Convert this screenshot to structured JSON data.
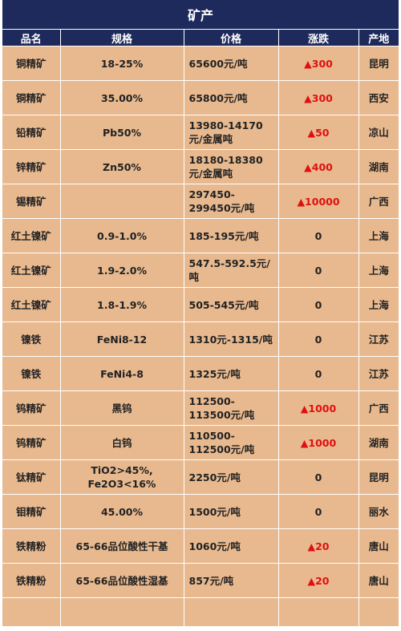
{
  "title": "矿产",
  "headers": [
    "品名",
    "规格",
    "价格",
    "涨跌",
    "产地"
  ],
  "rows": [
    {
      "name": "铜精矿",
      "spec": "18-25%",
      "price": "65600元/吨",
      "change": "▲300",
      "origin": "昆明"
    },
    {
      "name": "铜精矿",
      "spec": "35.00%",
      "price": "65800元/吨",
      "change": "▲300",
      "origin": "西安"
    },
    {
      "name": "铅精矿",
      "spec": "Pb50%",
      "price": "13980-14170元/金属吨",
      "change": "▲50",
      "origin": "凉山"
    },
    {
      "name": "锌精矿",
      "spec": "Zn50%",
      "price": "18180-18380元/金属吨",
      "change": "▲400",
      "origin": "湖南"
    },
    {
      "name": "锡精矿",
      "spec": "",
      "price": "297450-299450元/吨",
      "change": "▲10000",
      "origin": "广西"
    },
    {
      "name": "红土镍矿",
      "spec": "0.9-1.0%",
      "price": "185-195元/吨",
      "change": "0",
      "origin": "上海"
    },
    {
      "name": "红土镍矿",
      "spec": "1.9-2.0%",
      "price": "547.5-592.5元/吨",
      "change": "0",
      "origin": "上海"
    },
    {
      "name": "红土镍矿",
      "spec": "1.8-1.9%",
      "price": "505-545元/吨",
      "change": "0",
      "origin": "上海"
    },
    {
      "name": "镍铁",
      "spec": "FeNi8-12",
      "price": "1310元-1315/吨",
      "change": "0",
      "origin": "江苏"
    },
    {
      "name": "镍铁",
      "spec": "FeNi4-8",
      "price": "1325元/吨",
      "change": "0",
      "origin": "江苏"
    },
    {
      "name": "钨精矿",
      "spec": "黑钨",
      "price": "112500-113500元/吨",
      "change": "▲1000",
      "origin": "广西"
    },
    {
      "name": "钨精矿",
      "spec": "白钨",
      "price": "110500-112500元/吨",
      "change": "▲1000",
      "origin": "湖南"
    },
    {
      "name": "钛精矿",
      "spec": "TiO2>45%, Fe2O3<16%",
      "price": "2250元/吨",
      "change": "0",
      "origin": "昆明"
    },
    {
      "name": "钼精矿",
      "spec": "45.00%",
      "price": "1500元/吨",
      "change": "0",
      "origin": "丽水"
    },
    {
      "name": "铁精粉",
      "spec": "65-66品位酸性干基",
      "price": "1060元/吨",
      "change": "▲20",
      "origin": "唐山"
    },
    {
      "name": "铁精粉",
      "spec": "65-66品位酸性湿基",
      "price": "857元/吨",
      "change": "▲20",
      "origin": "唐山"
    }
  ],
  "colors": {
    "header": "#1e2a5c",
    "body": "#e8b98f",
    "up": "#e01010"
  }
}
